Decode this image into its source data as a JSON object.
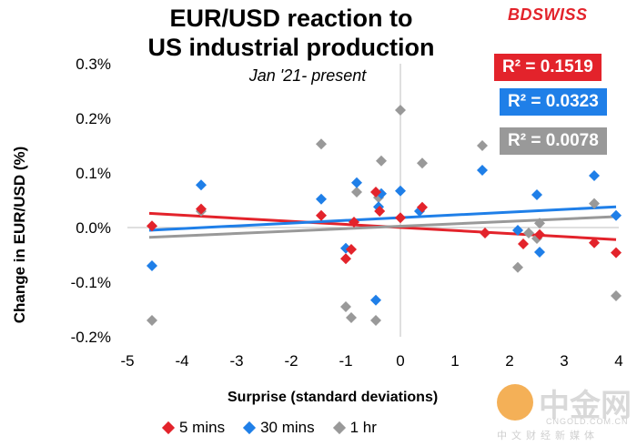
{
  "header": {
    "title_line1": "EUR/USD reaction to",
    "title_line2": "US industrial production",
    "subtitle": "Jan '21- present",
    "brand": "BDSWISS"
  },
  "chart_data": {
    "type": "scatter",
    "title": "EUR/USD reaction to US industrial production",
    "subtitle": "Jan '21- present",
    "xlabel": "Surprise (standard deviations)",
    "ylabel": "Change in EUR/USD  (%)",
    "xlim": [
      -5,
      4
    ],
    "ylim": [
      -0.2,
      0.3
    ],
    "x_ticks": [
      -5,
      -4,
      -3,
      -2,
      -1,
      0,
      1,
      2,
      3,
      4
    ],
    "x_tick_labels": [
      "-5",
      "-4",
      "-3",
      "-2",
      "-1",
      "0",
      "1",
      "2",
      "3",
      "4"
    ],
    "y_ticks": [
      -0.2,
      -0.1,
      0.0,
      0.1,
      0.2,
      0.3
    ],
    "y_tick_labels": [
      "-0.2%",
      "-0.1%",
      "0.0%",
      "0.1%",
      "0.2%",
      "0.3%"
    ],
    "series": [
      {
        "name": "5 mins",
        "color": "#e3232b",
        "r2_label": "R² = 0.1519",
        "trend": {
          "x": [
            -4.6,
            3.95
          ],
          "y": [
            0.026,
            -0.022
          ]
        },
        "points": [
          [
            -4.55,
            0.003
          ],
          [
            -3.65,
            0.034
          ],
          [
            -1.45,
            0.022
          ],
          [
            -1.0,
            -0.057
          ],
          [
            -0.9,
            -0.04
          ],
          [
            -0.85,
            0.01
          ],
          [
            -0.45,
            0.065
          ],
          [
            -0.38,
            0.03
          ],
          [
            0.0,
            0.018
          ],
          [
            0.4,
            0.037
          ],
          [
            1.55,
            -0.01
          ],
          [
            2.25,
            -0.03
          ],
          [
            2.55,
            -0.013
          ],
          [
            3.55,
            -0.028
          ],
          [
            3.95,
            -0.046
          ]
        ]
      },
      {
        "name": "30 mins",
        "color": "#1f7fe8",
        "r2_label": "R² = 0.0323",
        "trend": {
          "x": [
            -4.6,
            3.95
          ],
          "y": [
            -0.005,
            0.038
          ]
        },
        "points": [
          [
            -4.55,
            -0.07
          ],
          [
            -3.65,
            0.078
          ],
          [
            -1.45,
            0.052
          ],
          [
            -1.0,
            -0.038
          ],
          [
            -0.8,
            0.082
          ],
          [
            -0.45,
            -0.133
          ],
          [
            -0.4,
            0.038
          ],
          [
            -0.35,
            0.062
          ],
          [
            0.0,
            0.067
          ],
          [
            0.35,
            0.03
          ],
          [
            1.5,
            0.105
          ],
          [
            2.15,
            -0.005
          ],
          [
            2.5,
            0.06
          ],
          [
            2.55,
            -0.045
          ],
          [
            3.55,
            0.095
          ],
          [
            3.95,
            0.022
          ]
        ]
      },
      {
        "name": "1 hr",
        "color": "#999999",
        "r2_label": "R² = 0.0078",
        "trend": {
          "x": [
            -4.6,
            3.95
          ],
          "y": [
            -0.018,
            0.02
          ]
        },
        "points": [
          [
            -4.55,
            -0.17
          ],
          [
            -3.65,
            0.03
          ],
          [
            -1.45,
            0.153
          ],
          [
            -1.0,
            -0.145
          ],
          [
            -0.9,
            -0.165
          ],
          [
            -0.8,
            0.065
          ],
          [
            -0.45,
            -0.17
          ],
          [
            -0.4,
            0.055
          ],
          [
            -0.35,
            0.122
          ],
          [
            0.0,
            0.215
          ],
          [
            0.4,
            0.118
          ],
          [
            1.5,
            0.15
          ],
          [
            2.15,
            -0.073
          ],
          [
            2.35,
            -0.01
          ],
          [
            2.5,
            -0.02
          ],
          [
            2.55,
            0.008
          ],
          [
            3.55,
            0.044
          ],
          [
            3.95,
            -0.125
          ]
        ]
      }
    ]
  },
  "legend": {
    "items": [
      {
        "label": "5 mins",
        "color": "#e3232b"
      },
      {
        "label": "30 mins",
        "color": "#1f7fe8"
      },
      {
        "label": "1 hr",
        "color": "#999999"
      }
    ]
  },
  "r2_boxes": [
    {
      "label": "R² = 0.1519",
      "color": "#e3232b"
    },
    {
      "label": "R² = 0.0323",
      "color": "#1f7fe8"
    },
    {
      "label": "R² = 0.0078",
      "color": "#999999"
    }
  ],
  "watermark": {
    "name": "中金网",
    "url": "CNGOLD.COM.CN",
    "tagline": "中文财经新媒体"
  }
}
